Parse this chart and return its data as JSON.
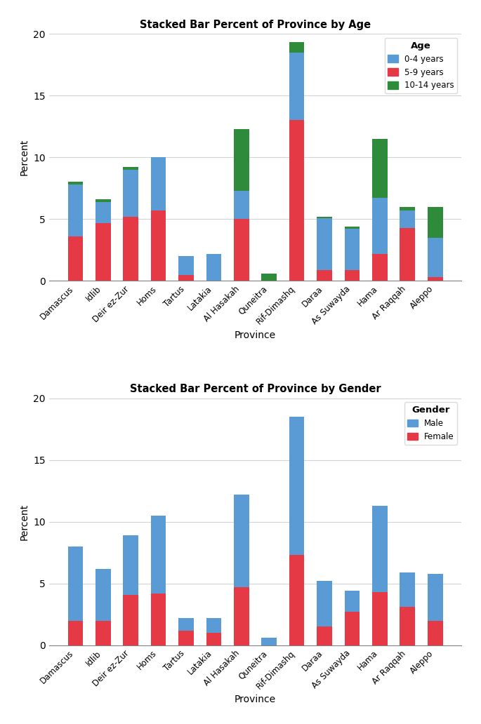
{
  "provinces": [
    "Damascus",
    "Idlib",
    "Deir ez-Zur",
    "Homs",
    "Tartus",
    "Latakia",
    "Al Hasakah",
    "Quneitra",
    "Rif-Dimashq",
    "Daraa",
    "As Suwayda",
    "Hama",
    "Ar Raqqah",
    "Aleppo"
  ],
  "age_0_4": [
    4.2,
    1.7,
    3.8,
    4.3,
    1.5,
    2.2,
    2.3,
    0.0,
    5.5,
    4.2,
    3.3,
    4.5,
    1.4,
    3.2
  ],
  "age_5_9": [
    3.6,
    4.7,
    5.2,
    5.7,
    0.5,
    0.0,
    5.0,
    0.0,
    13.0,
    0.9,
    0.9,
    2.2,
    4.3,
    0.3
  ],
  "age_10_14": [
    0.2,
    0.2,
    0.2,
    0.0,
    0.0,
    0.0,
    5.0,
    0.6,
    0.8,
    0.1,
    0.2,
    4.8,
    0.3,
    2.5
  ],
  "male_percent": [
    6.0,
    4.2,
    4.8,
    6.3,
    1.0,
    1.2,
    7.5,
    0.6,
    11.2,
    3.7,
    1.7,
    7.0,
    2.8,
    3.8
  ],
  "female_percent": [
    2.0,
    2.0,
    4.1,
    4.2,
    1.2,
    1.0,
    4.7,
    0.0,
    7.3,
    1.5,
    2.7,
    4.3,
    3.1,
    2.0
  ],
  "color_blue": "#5B9BD5",
  "color_red": "#E63946",
  "color_green": "#2E8B3A",
  "title_age": "Stacked Bar Percent of Province by Age",
  "title_gender": "Stacked Bar Percent of Province by Gender",
  "xlabel": "Province",
  "ylabel": "Percent",
  "ylim": [
    0,
    20
  ],
  "yticks": [
    0,
    5,
    10,
    15,
    20
  ],
  "legend_age_title": "Age",
  "legend_age_labels": [
    "0-4 years",
    "5-9 years",
    "10-14 years"
  ],
  "legend_gender_title": "Gender",
  "legend_gender_labels": [
    "Male",
    "Female"
  ]
}
